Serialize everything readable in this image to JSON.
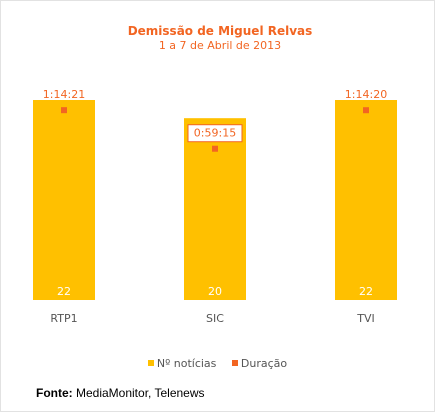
{
  "chart_data": {
    "type": "bar",
    "title": "Demissão de Miguel Relvas",
    "subtitle": "1 a 7 de Abril de 2013",
    "categories": [
      "RTP1",
      "SIC",
      "TVI"
    ],
    "series": [
      {
        "name": "Nº notícias",
        "type": "bar",
        "values": [
          22,
          20,
          22
        ],
        "color": "#FFC000",
        "labels": [
          "22",
          "20",
          "22"
        ]
      },
      {
        "name": "Duração",
        "type": "scatter",
        "values": [
          "1:14:21",
          "0:59:15",
          "1:14:20"
        ],
        "seconds": [
          4461,
          3555,
          4460
        ],
        "color": "#F26522",
        "labels": [
          "1:14:21",
          "0:59:15",
          "1:14:20"
        ]
      }
    ],
    "bar_ylim": [
      0,
      22
    ],
    "duration_ylim_seconds": [
      0,
      4700
    ],
    "grid": false,
    "legend_position": "bottom",
    "colors": {
      "title": "#F26522",
      "tick_label": "#555555",
      "bar_label": "#ffffff"
    }
  },
  "legend": {
    "items": [
      {
        "label": "Nº notícias",
        "color": "#FFC000"
      },
      {
        "label": "Duração",
        "color": "#F26522"
      }
    ]
  },
  "source": {
    "label": "Fonte:",
    "text": " MediaMonitor, Telenews"
  }
}
